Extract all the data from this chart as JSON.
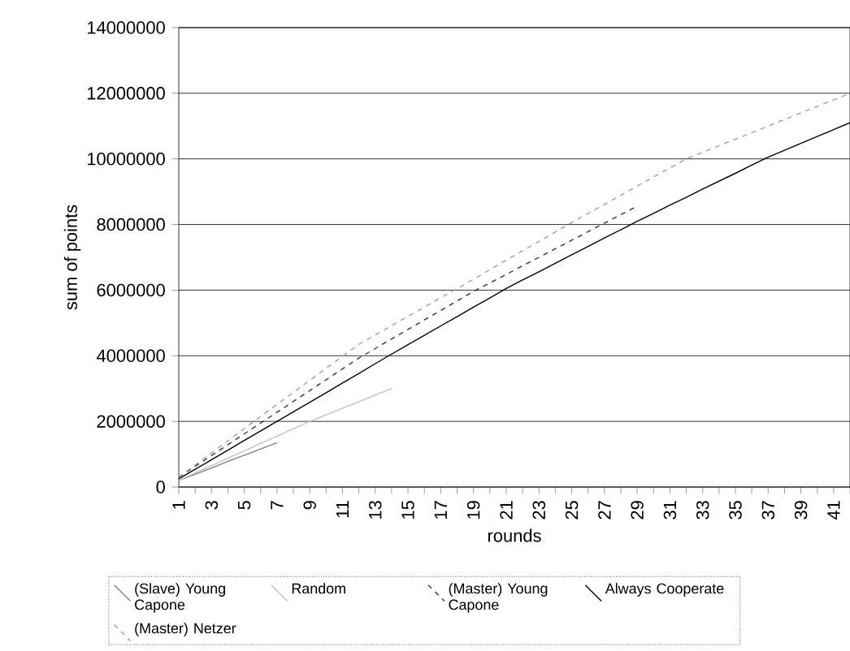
{
  "chart_data": {
    "type": "line",
    "xlabel": "rounds",
    "ylabel": "sum of points",
    "categories": [
      "1",
      null,
      "3",
      null,
      "5",
      null,
      "7",
      null,
      "9",
      null,
      "11",
      null,
      "13",
      null,
      "15",
      null,
      "17",
      null,
      "19",
      null,
      "21",
      null,
      "23",
      null,
      "25",
      null,
      "27",
      null,
      "29",
      null,
      "31",
      null,
      "33",
      null,
      "35",
      null,
      "37",
      null,
      "39",
      null,
      "41",
      null
    ],
    "ylim": [
      0,
      14000000
    ],
    "yticks": [
      0,
      2000000,
      4000000,
      6000000,
      8000000,
      10000000,
      12000000,
      14000000
    ],
    "grid": "y",
    "legend": "bottom",
    "marker": "none",
    "series": [
      {
        "name": "(Slave) Young Capone",
        "color": "#808080",
        "line_style": "solid",
        "values": [
          200000,
          390000,
          580000,
          780000,
          970000,
          1160000,
          1350000,
          null,
          null,
          null,
          null,
          null,
          null,
          null,
          null,
          null,
          null,
          null,
          null,
          null,
          null,
          null,
          null,
          null,
          null,
          null,
          null,
          null,
          null,
          null,
          null,
          null,
          null,
          null,
          null,
          null,
          null,
          null,
          null,
          null,
          null,
          null
        ]
      },
      {
        "name": "Random",
        "color": "#c0c0c0",
        "line_style": "solid",
        "values": [
          200000,
          430000,
          650000,
          880000,
          1100000,
          1330000,
          1550000,
          1780000,
          2000000,
          2200000,
          2400000,
          2600000,
          2800000,
          3000000,
          null,
          null,
          null,
          null,
          null,
          null,
          null,
          null,
          null,
          null,
          null,
          null,
          null,
          null,
          null,
          null,
          null,
          null,
          null,
          null,
          null,
          null,
          null,
          null,
          null,
          null,
          null,
          null
        ]
      },
      {
        "name": "(Master) Young Capone",
        "color": "#333333",
        "line_style": "dashed",
        "values": [
          300000,
          630000,
          960000,
          1290000,
          1620000,
          1950000,
          2280000,
          2610000,
          2940000,
          3270000,
          3600000,
          3930000,
          4220000,
          4510000,
          4800000,
          5090000,
          5380000,
          5670000,
          5960000,
          6220000,
          6480000,
          6740000,
          7000000,
          7260000,
          7520000,
          7780000,
          8040000,
          8300000,
          8560000,
          null,
          null,
          null,
          null,
          null,
          null,
          null,
          null,
          null,
          null,
          null,
          null,
          null
        ]
      },
      {
        "name": "Always Cooperate",
        "color": "#000000",
        "line_style": "solid",
        "values": [
          250000,
          540000,
          830000,
          1120000,
          1420000,
          1710000,
          2000000,
          2290000,
          2580000,
          2870000,
          3170000,
          3460000,
          3760000,
          4050000,
          4340000,
          4620000,
          4910000,
          5190000,
          5480000,
          5760000,
          6050000,
          6310000,
          6560000,
          6820000,
          7080000,
          7330000,
          7590000,
          7840000,
          8100000,
          8340000,
          8590000,
          8830000,
          9080000,
          9320000,
          9560000,
          9810000,
          10050000,
          10260000,
          10470000,
          10680000,
          10890000,
          11100000
        ]
      },
      {
        "name": "(Master) Netzer",
        "color": "#a0a0a0",
        "line_style": "dashed",
        "values": [
          300000,
          670000,
          1040000,
          1410000,
          1780000,
          2150000,
          2520000,
          2880000,
          3250000,
          3620000,
          3980000,
          4350000,
          4630000,
          4920000,
          5200000,
          5480000,
          5770000,
          6050000,
          6330000,
          6620000,
          6910000,
          7200000,
          7480000,
          7770000,
          8060000,
          8340000,
          8610000,
          8890000,
          9170000,
          9450000,
          9720000,
          10000000,
          10200000,
          10400000,
          10600000,
          10800000,
          11000000,
          11200000,
          11400000,
          11600000,
          11800000,
          12000000
        ]
      }
    ]
  }
}
